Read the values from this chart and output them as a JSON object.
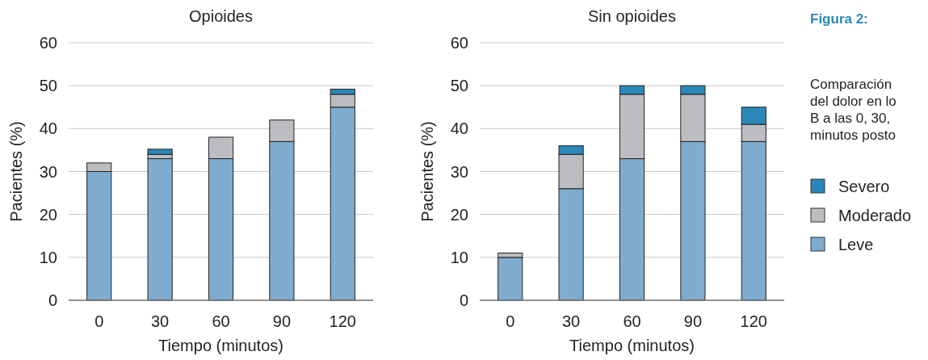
{
  "chart_data": [
    {
      "type": "bar",
      "title": "Opioides",
      "xlabel": "Tiempo (minutos)",
      "ylabel": "Pacientes (%)",
      "categories": [
        "0",
        "30",
        "60",
        "90",
        "120"
      ],
      "stacked": true,
      "ylim": [
        0,
        60
      ],
      "yticks": [
        0,
        10,
        20,
        30,
        40,
        50,
        60
      ],
      "grid": "y",
      "series": [
        {
          "color": "#7facce",
          "values": [
            30,
            33,
            33,
            37,
            45
          ]
        },
        {
          "color": "#bcbdc1",
          "values": [
            2,
            1,
            5,
            5,
            3
          ]
        },
        {
          "color": "#2a88b8",
          "values": [
            0,
            1.2,
            0,
            0,
            1.2
          ]
        }
      ]
    },
    {
      "type": "bar",
      "title": "Sin opioides",
      "xlabel": "Tiempo (minutos)",
      "ylabel": "Pacientes (%)",
      "categories": [
        "0",
        "30",
        "60",
        "90",
        "120"
      ],
      "stacked": true,
      "ylim": [
        0,
        60
      ],
      "yticks": [
        0,
        10,
        20,
        30,
        40,
        50,
        60
      ],
      "grid": "y",
      "legend": "right",
      "annotations": [
        "Figura 2:",
        "Comparación\ndel dolor en lo\nB a las 0, 30,\nminutos posto"
      ],
      "series": [
        {
          "name": "Leve",
          "color": "#7facce",
          "values": [
            10,
            26,
            33,
            37,
            37
          ]
        },
        {
          "name": "Moderado",
          "color": "#bcbdc1",
          "values": [
            1,
            8,
            15,
            11,
            4
          ]
        },
        {
          "name": "Severo",
          "color": "#2a88b8",
          "values": [
            0,
            2,
            2,
            2,
            4
          ]
        }
      ]
    }
  ]
}
